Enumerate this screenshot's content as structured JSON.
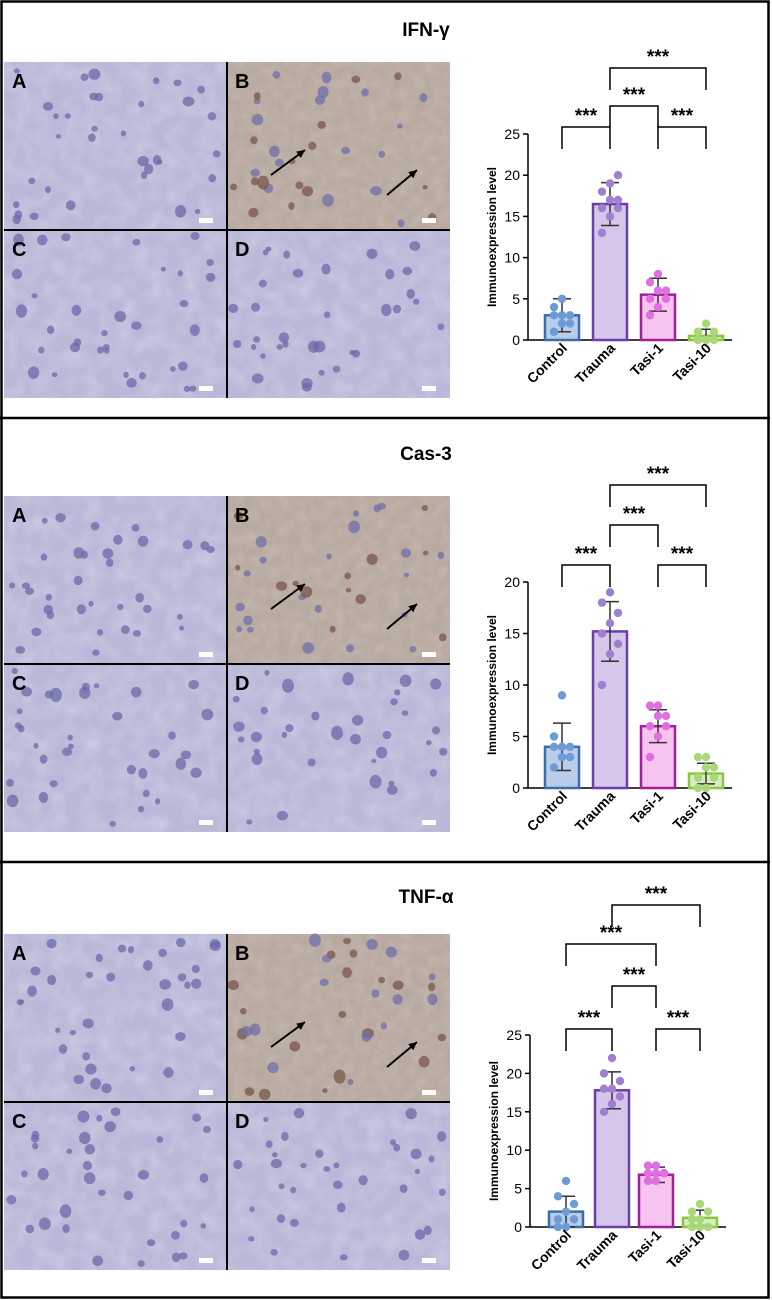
{
  "figure": {
    "panels": [
      {
        "title": "IFN-γ",
        "micrograph_labels": [
          "A",
          "B",
          "C",
          "D"
        ],
        "chart_data": {
          "type": "bar",
          "ylabel": "Immunoexpression level",
          "xlabel": "",
          "ylim": [
            0,
            25
          ],
          "yticks": [
            0,
            5,
            10,
            15,
            20,
            25
          ],
          "categories": [
            "Control",
            "Trauma",
            "Tasi-1",
            "Tasi-10"
          ],
          "values": [
            3.0,
            16.5,
            5.5,
            0.5
          ],
          "sd": [
            2.0,
            2.6,
            2.0,
            0.8
          ],
          "points": [
            [
              1,
              2,
              2,
              3,
              3,
              3,
              4,
              5
            ],
            [
              13,
              15,
              16,
              16,
              17,
              17,
              18,
              19,
              20
            ],
            [
              3,
              4,
              5,
              5,
              6,
              6,
              7,
              8
            ],
            [
              0,
              0,
              0,
              0,
              0,
              1,
              1,
              2
            ]
          ],
          "colors": {
            "fill": [
              "#b9cdea",
              "#d6c6ea",
              "#f6c4ee",
              "#d6edc1"
            ],
            "stroke": [
              "#3a6ea8",
              "#6b3fa8",
              "#a0209a",
              "#8cc63f"
            ],
            "points": [
              "#6c9bd6",
              "#a07fd0",
              "#e06fe0",
              "#a8d877"
            ]
          },
          "significance": [
            {
              "from": "Control",
              "to": "Trauma",
              "label": "***"
            },
            {
              "from": "Trauma",
              "to": "Tasi-1",
              "label": "***"
            },
            {
              "from": "Trauma",
              "to": "Tasi-10",
              "label": "***"
            },
            {
              "from": "Tasi-1",
              "to": "Tasi-10",
              "label": "***"
            }
          ]
        }
      },
      {
        "title": "Cas-3",
        "micrograph_labels": [
          "A",
          "B",
          "C",
          "D"
        ],
        "chart_data": {
          "type": "bar",
          "ylabel": "Immunoexpression level",
          "xlabel": "",
          "ylim": [
            0,
            20
          ],
          "yticks": [
            0,
            5,
            10,
            15,
            20
          ],
          "categories": [
            "Control",
            "Trauma",
            "Tasi-1",
            "Tasi-10"
          ],
          "values": [
            4.0,
            15.2,
            6.0,
            1.4
          ],
          "sd": [
            2.3,
            2.9,
            1.6,
            1.0
          ],
          "points": [
            [
              2,
              3,
              3,
              4,
              4,
              4,
              5,
              9
            ],
            [
              10,
              13,
              14,
              15,
              16,
              17,
              18,
              19
            ],
            [
              3,
              5,
              6,
              6,
              7,
              7,
              8,
              8
            ],
            [
              0,
              0,
              1,
              1,
              2,
              2,
              3,
              3
            ]
          ],
          "colors": {
            "fill": [
              "#b9cdea",
              "#d6c6ea",
              "#f6c4ee",
              "#d6edc1"
            ],
            "stroke": [
              "#3a6ea8",
              "#6b3fa8",
              "#a0209a",
              "#8cc63f"
            ],
            "points": [
              "#6c9bd6",
              "#a07fd0",
              "#e06fe0",
              "#a8d877"
            ]
          },
          "significance": [
            {
              "from": "Control",
              "to": "Trauma",
              "label": "***"
            },
            {
              "from": "Trauma",
              "to": "Tasi-1",
              "label": "***"
            },
            {
              "from": "Trauma",
              "to": "Tasi-10",
              "label": "***"
            },
            {
              "from": "Tasi-1",
              "to": "Tasi-10",
              "label": "***"
            }
          ]
        }
      },
      {
        "title": "TNF-α",
        "micrograph_labels": [
          "A",
          "B",
          "C",
          "D"
        ],
        "chart_data": {
          "type": "bar",
          "ylabel": "Immunoexpression level",
          "xlabel": "",
          "ylim": [
            0,
            25
          ],
          "yticks": [
            0,
            5,
            10,
            15,
            20,
            25
          ],
          "categories": [
            "Control",
            "Trauma",
            "Tasi-1",
            "Tasi-10"
          ],
          "values": [
            2.0,
            17.8,
            6.8,
            1.2
          ],
          "sd": [
            2.0,
            2.4,
            1.0,
            1.0
          ],
          "points": [
            [
              0,
              0,
              1,
              1,
              2,
              3,
              4,
              6
            ],
            [
              15,
              16,
              17,
              18,
              18,
              19,
              20,
              22
            ],
            [
              6,
              6,
              7,
              7,
              7,
              7,
              8,
              8
            ],
            [
              0,
              0,
              0,
              1,
              1,
              2,
              2,
              3
            ]
          ],
          "colors": {
            "fill": [
              "#b9cdea",
              "#d6c6ea",
              "#f6c4ee",
              "#d6edc1"
            ],
            "stroke": [
              "#3a6ea8",
              "#6b3fa8",
              "#a0209a",
              "#8cc63f"
            ],
            "points": [
              "#6c9bd6",
              "#a07fd0",
              "#e06fe0",
              "#a8d877"
            ]
          },
          "significance": [
            {
              "from": "Control",
              "to": "Trauma",
              "label": "***"
            },
            {
              "from": "Trauma",
              "to": "Tasi-1",
              "label": "***"
            },
            {
              "from": "Control",
              "to": "Tasi-1",
              "label": "***"
            },
            {
              "from": "Trauma",
              "to": "Tasi-10",
              "label": "***"
            },
            {
              "from": "Tasi-1",
              "to": "Tasi-10",
              "label": "***"
            }
          ]
        }
      }
    ]
  }
}
